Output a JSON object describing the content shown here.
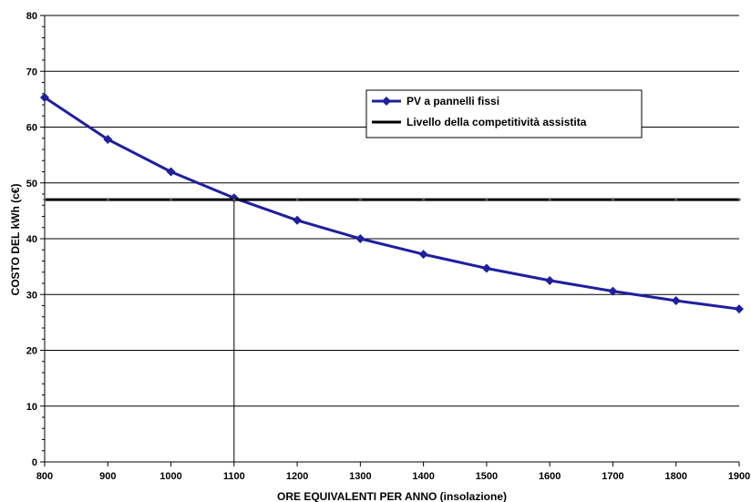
{
  "chart_data": {
    "type": "line",
    "xlabel": "ORE EQUIVALENTI PER ANNO (insolazione)",
    "ylabel": "COSTO DEL kWh (c€)",
    "xlim": [
      800,
      1900
    ],
    "ylim": [
      0,
      80
    ],
    "x": [
      800,
      900,
      1000,
      1100,
      1200,
      1300,
      1400,
      1500,
      1600,
      1700,
      1800,
      1900
    ],
    "x_tick_labels": [
      "800",
      "900",
      "1000",
      "1100",
      "1200",
      "1300",
      "1400",
      "1500",
      "1600",
      "1700",
      "1800",
      "1900"
    ],
    "y_ticks": [
      0,
      10,
      20,
      30,
      40,
      50,
      60,
      70,
      80
    ],
    "y_tick_labels": [
      "0",
      "10",
      "20",
      "30",
      "40",
      "50",
      "60",
      "70",
      "80"
    ],
    "grid": "horizontal",
    "legend_position": "top-right",
    "series": [
      {
        "name": "PV a pannelli fissi",
        "color": "#1f1f9f",
        "marker": "diamond",
        "values": [
          65.3,
          57.8,
          52.0,
          47.3,
          43.3,
          40.0,
          37.2,
          34.7,
          32.5,
          30.6,
          28.9,
          27.4
        ]
      },
      {
        "name": "Livello della competitività assistita",
        "color": "#000000",
        "marker": "none",
        "values": [
          47,
          47,
          47,
          47,
          47,
          47,
          47,
          47,
          47,
          47,
          47,
          47
        ]
      }
    ],
    "annotations": [
      {
        "type": "vertical-line",
        "x": 1100,
        "color": "#000000"
      }
    ]
  }
}
